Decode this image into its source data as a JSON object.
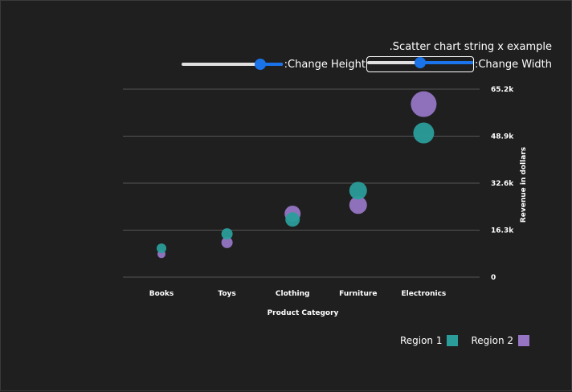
{
  "controls": {
    "title": ".Scatter chart string x example",
    "height_label": ":Change Height",
    "height_value": 0.78,
    "width_label": ":Change Width",
    "width_value": 0.5
  },
  "colors": {
    "background": "#1f1f1f",
    "region1": "#2a9d9a",
    "region2": "#9676c4",
    "grid": "#555555",
    "accent": "#1a73e8"
  },
  "legend": [
    {
      "name": "Region 2",
      "color": "#9676c4"
    },
    {
      "name": "Region 1",
      "color": "#2a9d9a"
    }
  ],
  "chart_data": {
    "type": "scatter",
    "xlabel": "Product Category",
    "ylabel": "Revenue in dollars",
    "categories": [
      "Books",
      "Toys",
      "Clothing",
      "Furniture",
      "Electronics"
    ],
    "yticks": [
      "0",
      "16.3k",
      "32.6k",
      "48.9k",
      "65.2k"
    ],
    "ylim": [
      0,
      65200
    ],
    "y_axis_side": "right",
    "grid": true,
    "legend_position": "bottom-right",
    "series": [
      {
        "name": "Region 1",
        "color": "#2a9d9a",
        "values": [
          10000,
          15000,
          20000,
          30000,
          50000
        ],
        "sizes": [
          6,
          7,
          9,
          11,
          13
        ]
      },
      {
        "name": "Region 2",
        "color": "#9676c4",
        "values": [
          8000,
          12000,
          22000,
          25000,
          60000
        ],
        "sizes": [
          5,
          7,
          10,
          11,
          16
        ]
      }
    ]
  }
}
